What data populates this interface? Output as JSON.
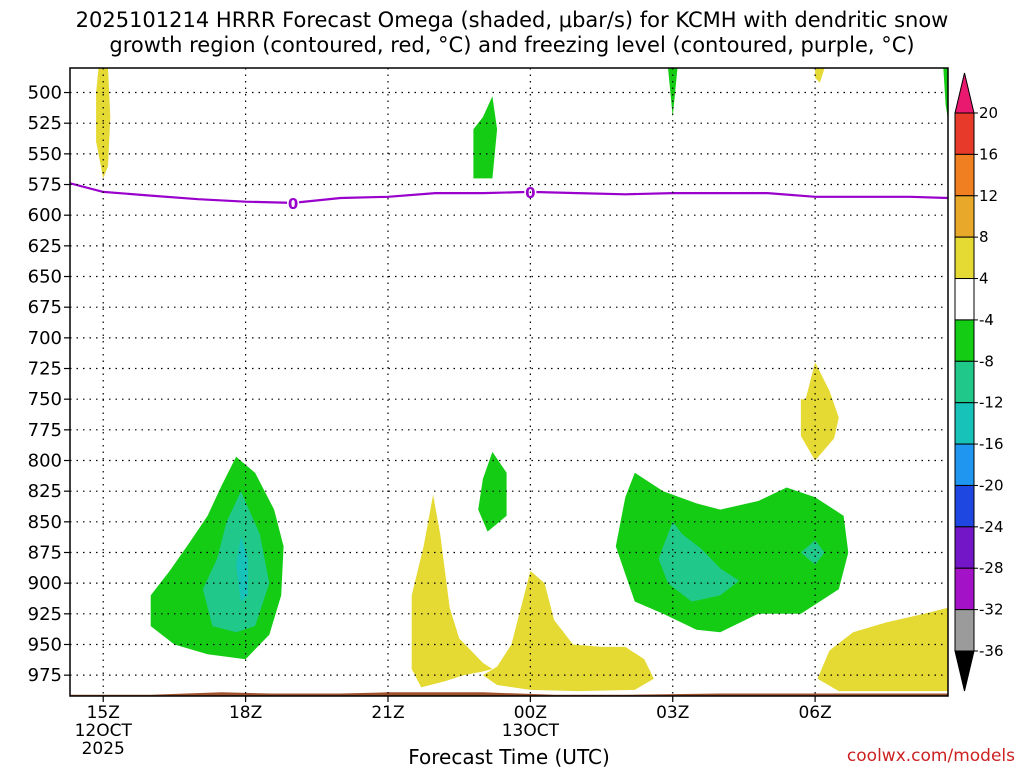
{
  "chart_data": {
    "type": "heatmap",
    "title_lines": [
      "2025101214 HRRR Forecast Omega (shaded, μbar/s) for KCMH with dendritic snow",
      "growth region (contoured, red, °C) and freezing level (contoured, purple, °C)"
    ],
    "xlabel": "Forecast Time (UTC)",
    "credit": "coolwx.com/models",
    "x_range_hours": [
      14.3,
      32.8
    ],
    "y_range_hpa": [
      480,
      992
    ],
    "y_ticks": [
      500,
      525,
      550,
      575,
      600,
      625,
      650,
      675,
      700,
      725,
      750,
      775,
      800,
      825,
      850,
      875,
      900,
      925,
      950,
      975
    ],
    "x_ticks": [
      {
        "h": 15,
        "lines": [
          "15Z",
          "12OCT",
          "2025"
        ]
      },
      {
        "h": 18,
        "lines": [
          "18Z"
        ]
      },
      {
        "h": 21,
        "lines": [
          "21Z"
        ]
      },
      {
        "h": 24,
        "lines": [
          "00Z",
          "13OCT"
        ]
      },
      {
        "h": 27,
        "lines": [
          "03Z"
        ]
      },
      {
        "h": 30,
        "lines": [
          "06Z"
        ]
      }
    ],
    "freezing_level": {
      "label": "0",
      "color": "#9900cc",
      "label_points": [
        {
          "h": 19.0,
          "p": 590
        },
        {
          "h": 24.0,
          "p": 581
        }
      ],
      "points": [
        [
          14.3,
          574
        ],
        [
          15.0,
          581
        ],
        [
          16.0,
          584
        ],
        [
          17.0,
          587
        ],
        [
          18.0,
          589
        ],
        [
          19.0,
          590
        ],
        [
          20.0,
          586
        ],
        [
          21.0,
          585
        ],
        [
          22.0,
          582
        ],
        [
          23.0,
          582
        ],
        [
          24.0,
          581
        ],
        [
          25.0,
          582
        ],
        [
          26.0,
          583
        ],
        [
          27.0,
          582
        ],
        [
          28.0,
          582
        ],
        [
          29.0,
          582
        ],
        [
          30.0,
          585
        ],
        [
          31.0,
          585
        ],
        [
          32.0,
          585
        ],
        [
          32.8,
          586
        ]
      ]
    },
    "surface_color": "#a0522d",
    "surface_points": [
      [
        14.3,
        991
      ],
      [
        16.0,
        991
      ],
      [
        17.5,
        989
      ],
      [
        18.5,
        990
      ],
      [
        20.0,
        990
      ],
      [
        21.0,
        989
      ],
      [
        23.0,
        989
      ],
      [
        24.5,
        991
      ],
      [
        26.0,
        991
      ],
      [
        28.0,
        990
      ],
      [
        30.0,
        990
      ],
      [
        32.8,
        990
      ]
    ],
    "colorbar": {
      "labels": [
        "20",
        "16",
        "12",
        "8",
        "4",
        "-4",
        "-8",
        "-12",
        "-16",
        "-20",
        "-24",
        "-28",
        "-32",
        "-36"
      ],
      "colors_top_to_bottom": [
        "#e8196e",
        "#e83a2a",
        "#f07f22",
        "#e8a92b",
        "#e5d933",
        "#ffffff",
        "#13cc13",
        "#20c88a",
        "#17c2b8",
        "#1f96ef",
        "#1d47e0",
        "#7216c8",
        "#a312c6",
        "#9b9b9b",
        "#000000"
      ]
    },
    "regions": [
      {
        "color": "#e5d933",
        "points": [
          [
            14.9,
            480
          ],
          [
            15.1,
            480
          ],
          [
            15.15,
            520
          ],
          [
            15.1,
            560
          ],
          [
            15.0,
            570
          ],
          [
            14.85,
            540
          ],
          [
            14.85,
            500
          ]
        ]
      },
      {
        "color": "#13cc13",
        "points": [
          [
            23.0,
            520
          ],
          [
            23.2,
            503
          ],
          [
            23.3,
            530
          ],
          [
            23.2,
            570
          ],
          [
            22.8,
            570
          ],
          [
            22.8,
            530
          ]
        ]
      },
      {
        "color": "#13cc13",
        "points": [
          [
            26.9,
            480
          ],
          [
            27.1,
            480
          ],
          [
            27.05,
            500
          ],
          [
            27.0,
            520
          ],
          [
            26.95,
            500
          ]
        ]
      },
      {
        "color": "#e5d933",
        "points": [
          [
            30.0,
            480
          ],
          [
            30.2,
            480
          ],
          [
            30.1,
            492
          ],
          [
            30.0,
            488
          ]
        ]
      },
      {
        "color": "#13cc13",
        "points": [
          [
            32.7,
            480
          ],
          [
            32.8,
            480
          ],
          [
            32.8,
            522
          ],
          [
            32.75,
            510
          ]
        ]
      },
      {
        "color": "#e5d933",
        "points": [
          [
            29.8,
            750
          ],
          [
            30.0,
            720
          ],
          [
            30.3,
            743
          ],
          [
            30.5,
            765
          ],
          [
            30.4,
            782
          ],
          [
            30.0,
            800
          ],
          [
            29.7,
            780
          ],
          [
            29.7,
            750
          ]
        ]
      },
      {
        "color": "#13cc13",
        "points": [
          [
            16.0,
            910
          ],
          [
            16.4,
            890
          ],
          [
            16.8,
            868
          ],
          [
            17.2,
            845
          ],
          [
            17.5,
            820
          ],
          [
            17.8,
            797
          ],
          [
            18.2,
            810
          ],
          [
            18.6,
            840
          ],
          [
            18.8,
            870
          ],
          [
            18.75,
            910
          ],
          [
            18.5,
            942
          ],
          [
            18.0,
            962
          ],
          [
            17.2,
            958
          ],
          [
            16.5,
            950
          ],
          [
            16.0,
            935
          ]
        ]
      },
      {
        "color": "#20c88a",
        "points": [
          [
            17.1,
            905
          ],
          [
            17.4,
            880
          ],
          [
            17.6,
            850
          ],
          [
            17.9,
            825
          ],
          [
            18.3,
            860
          ],
          [
            18.5,
            900
          ],
          [
            18.2,
            935
          ],
          [
            17.8,
            940
          ],
          [
            17.3,
            935
          ]
        ]
      },
      {
        "color": "#17c2b8",
        "points": [
          [
            17.8,
            885
          ],
          [
            17.9,
            862
          ],
          [
            18.05,
            880
          ],
          [
            18.05,
            910
          ],
          [
            17.9,
            915
          ]
        ]
      },
      {
        "color": "#e5d933",
        "points": [
          [
            21.5,
            910
          ],
          [
            21.75,
            870
          ],
          [
            21.95,
            828
          ],
          [
            22.1,
            860
          ],
          [
            22.3,
            920
          ],
          [
            22.5,
            945
          ],
          [
            23.0,
            965
          ],
          [
            23.2,
            970
          ],
          [
            23.0,
            972
          ],
          [
            22.6,
            975
          ],
          [
            22.2,
            980
          ],
          [
            21.7,
            985
          ],
          [
            21.5,
            970
          ]
        ]
      },
      {
        "color": "#e5d933",
        "points": [
          [
            23.3,
            968
          ],
          [
            23.6,
            950
          ],
          [
            23.8,
            920
          ],
          [
            24.0,
            890
          ],
          [
            24.3,
            900
          ],
          [
            24.5,
            930
          ],
          [
            24.9,
            950
          ],
          [
            25.5,
            952
          ],
          [
            26.0,
            952
          ],
          [
            26.4,
            962
          ],
          [
            26.6,
            978
          ],
          [
            26.2,
            987
          ],
          [
            25.0,
            988
          ],
          [
            24.0,
            987
          ],
          [
            23.3,
            983
          ],
          [
            23.0,
            975
          ]
        ]
      },
      {
        "color": "#13cc13",
        "points": [
          [
            23.0,
            815
          ],
          [
            23.2,
            793
          ],
          [
            23.5,
            810
          ],
          [
            23.5,
            845
          ],
          [
            23.1,
            858
          ],
          [
            22.9,
            840
          ]
        ]
      },
      {
        "color": "#13cc13",
        "points": [
          [
            25.8,
            870
          ],
          [
            26.0,
            830
          ],
          [
            26.2,
            810
          ],
          [
            26.8,
            825
          ],
          [
            27.5,
            835
          ],
          [
            28.0,
            840
          ],
          [
            28.8,
            833
          ],
          [
            29.4,
            822
          ],
          [
            30.0,
            830
          ],
          [
            30.6,
            845
          ],
          [
            30.7,
            875
          ],
          [
            30.5,
            905
          ],
          [
            29.7,
            925
          ],
          [
            28.8,
            925
          ],
          [
            28.0,
            940
          ],
          [
            27.5,
            938
          ],
          [
            26.8,
            925
          ],
          [
            26.2,
            915
          ]
        ]
      },
      {
        "color": "#20c88a",
        "points": [
          [
            26.7,
            880
          ],
          [
            27.0,
            850
          ],
          [
            27.2,
            860
          ],
          [
            27.6,
            872
          ],
          [
            28.0,
            888
          ],
          [
            28.4,
            898
          ],
          [
            28.0,
            910
          ],
          [
            27.4,
            915
          ],
          [
            26.9,
            900
          ]
        ]
      },
      {
        "color": "#20c88a",
        "points": [
          [
            29.7,
            875
          ],
          [
            30.0,
            865
          ],
          [
            30.2,
            875
          ],
          [
            30.0,
            885
          ]
        ]
      },
      {
        "color": "#e5d933",
        "points": [
          [
            30.05,
            978
          ],
          [
            30.3,
            955
          ],
          [
            30.8,
            940
          ],
          [
            31.5,
            932
          ],
          [
            32.3,
            925
          ],
          [
            32.8,
            920
          ],
          [
            32.8,
            988
          ],
          [
            31.2,
            988
          ],
          [
            30.5,
            988
          ]
        ]
      }
    ]
  }
}
